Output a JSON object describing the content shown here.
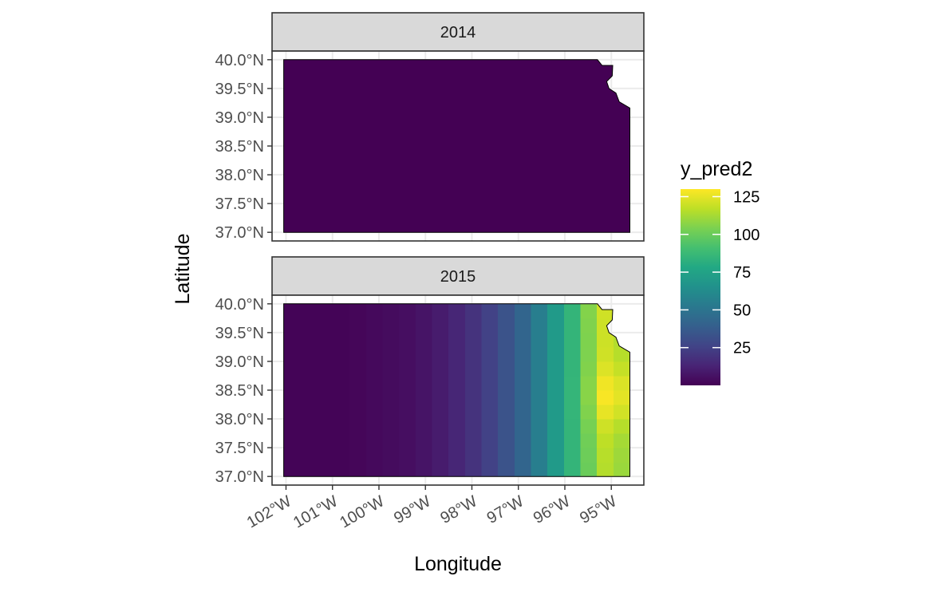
{
  "chart_data": {
    "type": "heatmap",
    "facet_variable": "year",
    "xlabel": "Longitude",
    "ylabel": "Latitude",
    "xlim": [
      -102.3,
      -94.3
    ],
    "ylim": [
      36.85,
      40.15
    ],
    "x_ticks": [
      -102,
      -101,
      -100,
      -99,
      -98,
      -97,
      -96,
      -95
    ],
    "x_tick_labels": [
      "102°W",
      "101°W",
      "100°W",
      "99°W",
      "98°W",
      "97°W",
      "96°W",
      "95°W"
    ],
    "y_ticks": [
      37.0,
      37.5,
      38.0,
      38.5,
      39.0,
      39.5,
      40.0
    ],
    "y_tick_labels": [
      "37.0°N",
      "37.5°N",
      "38.0°N",
      "38.5°N",
      "39.0°N",
      "39.5°N",
      "40.0°N"
    ],
    "grid": true,
    "color_scale": {
      "name": "viridis",
      "title": "y_pred2",
      "range": [
        0,
        130
      ],
      "breaks": [
        25,
        50,
        75,
        100,
        125
      ],
      "break_labels": [
        "25",
        "50",
        "75",
        "100",
        "125"
      ]
    },
    "legend_position": "right",
    "grid_cells": {
      "lon_range": [
        -102.05,
        -94.6
      ],
      "lat_range": [
        37.0,
        40.0
      ],
      "cols": 21,
      "rows": 12
    },
    "panels": [
      {
        "label": "2014",
        "values_all": 0
      },
      {
        "label": "2015",
        "column_values": [
          1,
          1,
          1,
          1,
          2,
          3,
          4,
          5,
          7,
          10,
          14,
          19,
          25,
          33,
          42,
          55,
          70,
          85,
          100,
          115,
          110
        ],
        "hotspot": {
          "lon": -95.0,
          "lat": 38.4,
          "peak": 128
        }
      }
    ]
  }
}
